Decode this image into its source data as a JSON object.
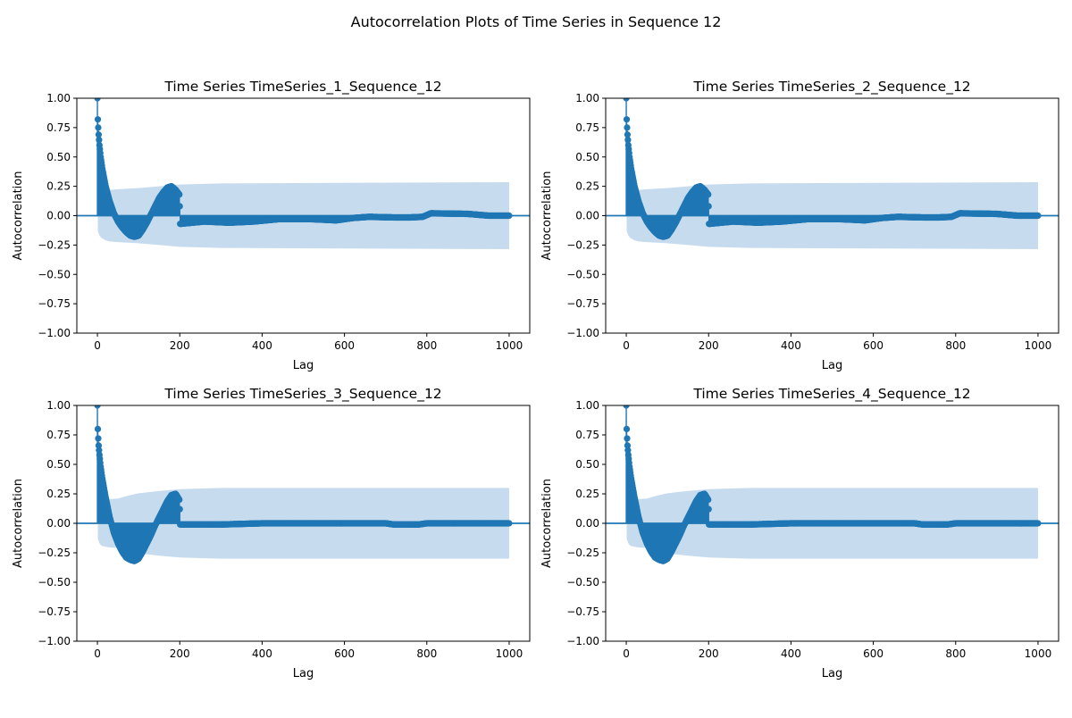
{
  "figure": {
    "suptitle": "Autocorrelation Plots of Time Series in Sequence 12"
  },
  "colors": {
    "marker": "#1f77b4",
    "confidence_band": "#c6dbed",
    "zero_line": "#1f77b4",
    "axes": "#000000",
    "background": "#ffffff"
  },
  "chart_data": [
    {
      "type": "scatter",
      "subtype": "autocorrelation-stem",
      "title": "Time Series TimeSeries_1_Sequence_12",
      "xlabel": "Lag",
      "ylabel": "Autocorrelation",
      "xlim": [
        -50,
        1050
      ],
      "ylim": [
        -1.0,
        1.0
      ],
      "xticks": [
        0,
        200,
        400,
        600,
        800,
        1000
      ],
      "yticks": [
        -1.0,
        -0.75,
        -0.5,
        -0.25,
        0.0,
        0.25,
        0.5,
        0.75,
        1.0
      ],
      "ytick_labels": [
        "−1.00",
        "−0.75",
        "−0.50",
        "−0.25",
        "0.00",
        "0.25",
        "0.50",
        "0.75",
        "1.00"
      ],
      "grid": false,
      "max_lag": 1000,
      "confidence_band": {
        "lags": [
          1,
          5,
          10,
          20,
          30,
          50,
          75,
          100,
          150,
          200,
          300,
          1000
        ],
        "upper": [
          0.13,
          0.17,
          0.19,
          0.21,
          0.22,
          0.225,
          0.23,
          0.235,
          0.25,
          0.265,
          0.275,
          0.285
        ]
      },
      "acf_profile": {
        "lags": [
          0,
          1,
          2,
          3,
          5,
          8,
          12,
          20,
          30,
          40,
          50,
          60,
          70,
          80,
          90,
          100,
          110,
          120,
          130,
          140,
          150,
          160,
          170,
          180,
          190,
          199,
          200,
          201,
          260,
          320,
          380,
          440,
          520,
          580,
          620,
          660,
          720,
          760,
          790,
          810,
          900,
          950,
          1000
        ],
        "values": [
          1.0,
          0.82,
          0.75,
          0.69,
          0.6,
          0.5,
          0.4,
          0.25,
          0.12,
          0.02,
          -0.05,
          -0.1,
          -0.14,
          -0.17,
          -0.18,
          -0.17,
          -0.12,
          -0.06,
          0.01,
          0.08,
          0.15,
          0.2,
          0.24,
          0.25,
          0.22,
          0.18,
          0.08,
          -0.07,
          -0.05,
          -0.06,
          -0.05,
          -0.03,
          -0.03,
          -0.04,
          -0.02,
          -0.01,
          -0.015,
          -0.015,
          -0.01,
          0.02,
          0.015,
          0.0,
          0.0
        ]
      }
    },
    {
      "type": "scatter",
      "subtype": "autocorrelation-stem",
      "title": "Time Series TimeSeries_2_Sequence_12",
      "xlabel": "Lag",
      "ylabel": "Autocorrelation",
      "xlim": [
        -50,
        1050
      ],
      "ylim": [
        -1.0,
        1.0
      ],
      "xticks": [
        0,
        200,
        400,
        600,
        800,
        1000
      ],
      "yticks": [
        -1.0,
        -0.75,
        -0.5,
        -0.25,
        0.0,
        0.25,
        0.5,
        0.75,
        1.0
      ],
      "ytick_labels": [
        "−1.00",
        "−0.75",
        "−0.50",
        "−0.25",
        "0.00",
        "0.25",
        "0.50",
        "0.75",
        "1.00"
      ],
      "grid": false,
      "max_lag": 1000,
      "confidence_band": {
        "lags": [
          1,
          5,
          10,
          20,
          30,
          50,
          75,
          100,
          150,
          200,
          300,
          1000
        ],
        "upper": [
          0.13,
          0.17,
          0.19,
          0.21,
          0.22,
          0.225,
          0.23,
          0.235,
          0.25,
          0.265,
          0.275,
          0.285
        ]
      },
      "acf_profile": {
        "lags": [
          0,
          1,
          2,
          3,
          5,
          8,
          12,
          20,
          30,
          40,
          50,
          60,
          70,
          80,
          90,
          100,
          110,
          120,
          130,
          140,
          150,
          160,
          170,
          180,
          190,
          199,
          200,
          201,
          260,
          320,
          380,
          440,
          520,
          580,
          620,
          660,
          720,
          760,
          790,
          810,
          900,
          950,
          1000
        ],
        "values": [
          1.0,
          0.82,
          0.75,
          0.69,
          0.6,
          0.5,
          0.4,
          0.25,
          0.12,
          0.02,
          -0.05,
          -0.1,
          -0.14,
          -0.17,
          -0.18,
          -0.17,
          -0.12,
          -0.06,
          0.01,
          0.08,
          0.15,
          0.2,
          0.24,
          0.25,
          0.22,
          0.18,
          0.08,
          -0.07,
          -0.05,
          -0.06,
          -0.05,
          -0.03,
          -0.03,
          -0.04,
          -0.02,
          -0.01,
          -0.015,
          -0.015,
          -0.01,
          0.02,
          0.015,
          0.0,
          0.0
        ]
      }
    },
    {
      "type": "scatter",
      "subtype": "autocorrelation-stem",
      "title": "Time Series TimeSeries_3_Sequence_12",
      "xlabel": "Lag",
      "ylabel": "Autocorrelation",
      "xlim": [
        -50,
        1050
      ],
      "ylim": [
        -1.0,
        1.0
      ],
      "xticks": [
        0,
        200,
        400,
        600,
        800,
        1000
      ],
      "yticks": [
        -1.0,
        -0.75,
        -0.5,
        -0.25,
        0.0,
        0.25,
        0.5,
        0.75,
        1.0
      ],
      "ytick_labels": [
        "−1.00",
        "−0.75",
        "−0.50",
        "−0.25",
        "0.00",
        "0.25",
        "0.50",
        "0.75",
        "1.00"
      ],
      "grid": false,
      "max_lag": 1000,
      "confidence_band": {
        "lags": [
          1,
          5,
          10,
          20,
          30,
          50,
          75,
          100,
          150,
          200,
          300,
          1000
        ],
        "upper": [
          0.13,
          0.17,
          0.19,
          0.2,
          0.205,
          0.21,
          0.235,
          0.255,
          0.275,
          0.29,
          0.3,
          0.3
        ]
      },
      "acf_profile": {
        "lags": [
          0,
          1,
          2,
          3,
          5,
          8,
          12,
          20,
          30,
          40,
          50,
          60,
          70,
          80,
          90,
          100,
          110,
          120,
          130,
          140,
          150,
          160,
          170,
          180,
          190,
          199,
          200,
          201,
          300,
          400,
          500,
          600,
          700,
          720,
          780,
          800,
          900,
          1000
        ],
        "values": [
          1.0,
          0.8,
          0.72,
          0.66,
          0.58,
          0.48,
          0.38,
          0.22,
          0.05,
          -0.08,
          -0.17,
          -0.24,
          -0.29,
          -0.31,
          -0.32,
          -0.3,
          -0.24,
          -0.17,
          -0.1,
          -0.02,
          0.05,
          0.12,
          0.19,
          0.24,
          0.25,
          0.2,
          0.12,
          -0.01,
          -0.01,
          0.0,
          0.0,
          0.0,
          0.0,
          -0.01,
          -0.01,
          0.0,
          0.0,
          0.0
        ]
      }
    },
    {
      "type": "scatter",
      "subtype": "autocorrelation-stem",
      "title": "Time Series TimeSeries_4_Sequence_12",
      "xlabel": "Lag",
      "ylabel": "Autocorrelation",
      "xlim": [
        -50,
        1050
      ],
      "ylim": [
        -1.0,
        1.0
      ],
      "xticks": [
        0,
        200,
        400,
        600,
        800,
        1000
      ],
      "yticks": [
        -1.0,
        -0.75,
        -0.5,
        -0.25,
        0.0,
        0.25,
        0.5,
        0.75,
        1.0
      ],
      "ytick_labels": [
        "−1.00",
        "−0.75",
        "−0.50",
        "−0.25",
        "0.00",
        "0.25",
        "0.50",
        "0.75",
        "1.00"
      ],
      "grid": false,
      "max_lag": 1000,
      "confidence_band": {
        "lags": [
          1,
          5,
          10,
          20,
          30,
          50,
          75,
          100,
          150,
          200,
          300,
          1000
        ],
        "upper": [
          0.13,
          0.17,
          0.19,
          0.2,
          0.205,
          0.21,
          0.235,
          0.255,
          0.275,
          0.29,
          0.3,
          0.3
        ]
      },
      "acf_profile": {
        "lags": [
          0,
          1,
          2,
          3,
          5,
          8,
          12,
          20,
          30,
          40,
          50,
          60,
          70,
          80,
          90,
          100,
          110,
          120,
          130,
          140,
          150,
          160,
          170,
          180,
          190,
          199,
          200,
          201,
          300,
          400,
          500,
          600,
          700,
          720,
          780,
          800,
          900,
          1000
        ],
        "values": [
          1.0,
          0.8,
          0.72,
          0.66,
          0.58,
          0.48,
          0.38,
          0.22,
          0.05,
          -0.08,
          -0.17,
          -0.24,
          -0.29,
          -0.31,
          -0.32,
          -0.3,
          -0.24,
          -0.17,
          -0.1,
          -0.02,
          0.05,
          0.12,
          0.19,
          0.24,
          0.25,
          0.2,
          0.12,
          -0.01,
          -0.01,
          0.0,
          0.0,
          0.0,
          0.0,
          -0.01,
          -0.01,
          0.0,
          0.0,
          0.0
        ]
      }
    }
  ]
}
